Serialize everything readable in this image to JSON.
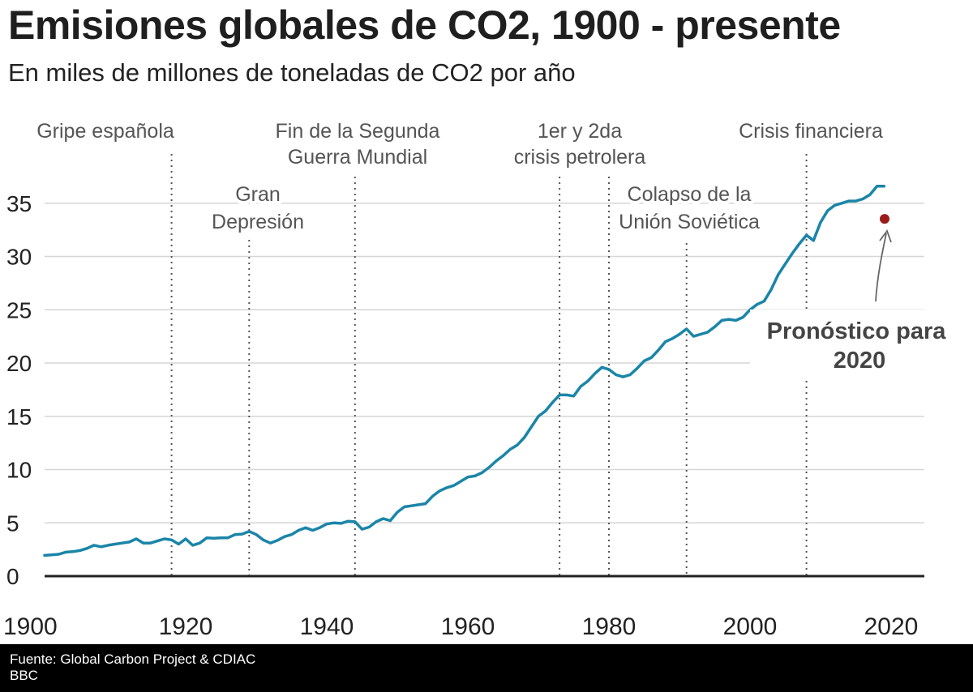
{
  "title": "Emisiones globales de CO2, 1900 - presente",
  "subtitle": "En miles de millones de toneladas de CO2 por año",
  "footer": {
    "source": "Fuente: Global Carbon Project & CDIAC",
    "publisher": "BBC"
  },
  "chart_data": {
    "type": "line",
    "title": "Emisiones globales de CO2, 1900 - presente",
    "subtitle": "En miles de millones de toneladas de CO2 por año",
    "xlabel": "",
    "ylabel": "",
    "xlim": [
      1900,
      2020
    ],
    "ylim": [
      0,
      38
    ],
    "x_ticks": [
      1900,
      1920,
      1940,
      1960,
      1980,
      2000,
      2020
    ],
    "y_ticks": [
      0,
      5,
      10,
      15,
      20,
      25,
      30,
      35
    ],
    "grid": "horizontal",
    "line_color": "#1a85a8",
    "series": [
      {
        "x": [
          1900,
          1901,
          1902,
          1903,
          1904,
          1905,
          1906,
          1907,
          1908,
          1909,
          1910,
          1911,
          1912,
          1913,
          1914,
          1915,
          1916,
          1917,
          1918,
          1919,
          1920,
          1921,
          1922,
          1923,
          1924,
          1925,
          1926,
          1927,
          1928,
          1929,
          1930,
          1931,
          1932,
          1933,
          1934,
          1935,
          1936,
          1937,
          1938,
          1939,
          1940,
          1941,
          1942,
          1943,
          1944,
          1945,
          1946,
          1947,
          1948,
          1949,
          1950,
          1951,
          1952,
          1953,
          1954,
          1955,
          1956,
          1957,
          1958,
          1959,
          1960,
          1961,
          1962,
          1963,
          1964,
          1965,
          1966,
          1967,
          1968,
          1969,
          1970,
          1971,
          1972,
          1973,
          1974,
          1975,
          1976,
          1977,
          1978,
          1979,
          1980,
          1981,
          1982,
          1983,
          1984,
          1985,
          1986,
          1987,
          1988,
          1989,
          1990,
          1991,
          1992,
          1993,
          1994,
          1995,
          1996,
          1997,
          1998,
          1999,
          2000,
          2001,
          2002,
          2003,
          2004,
          2005,
          2006,
          2007,
          2008,
          2009,
          2010,
          2011,
          2012,
          2013,
          2014,
          2015,
          2016,
          2017,
          2018,
          2019
        ],
        "values": [
          1.95,
          2.0,
          2.05,
          2.25,
          2.3,
          2.4,
          2.6,
          2.9,
          2.75,
          2.9,
          3.0,
          3.1,
          3.2,
          3.5,
          3.1,
          3.1,
          3.3,
          3.5,
          3.4,
          3.0,
          3.5,
          2.9,
          3.1,
          3.6,
          3.55,
          3.6,
          3.6,
          3.9,
          3.95,
          4.2,
          3.9,
          3.4,
          3.1,
          3.35,
          3.7,
          3.9,
          4.3,
          4.55,
          4.3,
          4.55,
          4.9,
          5.0,
          4.95,
          5.15,
          5.1,
          4.4,
          4.6,
          5.1,
          5.4,
          5.2,
          6.0,
          6.5,
          6.6,
          6.7,
          6.8,
          7.5,
          8.0,
          8.3,
          8.5,
          8.9,
          9.3,
          9.4,
          9.7,
          10.2,
          10.8,
          11.3,
          11.9,
          12.3,
          13.0,
          14.0,
          15.0,
          15.5,
          16.3,
          17.0,
          17.0,
          16.9,
          17.8,
          18.3,
          19.0,
          19.6,
          19.4,
          18.9,
          18.7,
          18.9,
          19.5,
          20.2,
          20.5,
          21.2,
          22.0,
          22.3,
          22.7,
          23.2,
          22.5,
          22.7,
          22.9,
          23.4,
          24.0,
          24.1,
          24.0,
          24.3,
          25.0,
          25.5,
          25.8,
          26.9,
          28.3,
          29.3,
          30.3,
          31.2,
          32.0,
          31.5,
          33.2,
          34.3,
          34.8,
          35.0,
          35.2,
          35.2,
          35.4,
          35.8,
          36.6,
          36.6
        ]
      }
    ],
    "forecast_point": {
      "x": 2020,
      "y": 33.6,
      "color": "#9b1b1b"
    },
    "annotations": [
      {
        "year": 1918,
        "text": [
          "Gripe española"
        ]
      },
      {
        "year": 1929,
        "text": [
          "Gran",
          "Depresión"
        ]
      },
      {
        "year": 1944,
        "text": [
          "Fin de la Segunda",
          "Guerra Mundial"
        ]
      },
      {
        "year": 1973,
        "text": [
          "1er y 2da",
          "crisis petrolera"
        ]
      },
      {
        "year": 1980,
        "text": []
      },
      {
        "year": 1991,
        "text": [
          "Colapso de la",
          "Unión Soviética"
        ]
      },
      {
        "year": 2008,
        "text": [
          "Crisis financiera"
        ]
      }
    ],
    "forecast_label": [
      "Pronóstico para",
      "2020"
    ]
  }
}
